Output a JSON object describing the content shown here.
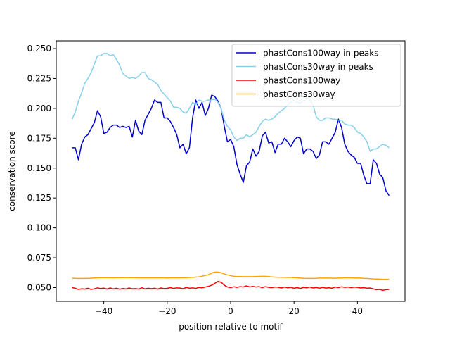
{
  "chart_data": {
    "type": "line",
    "title": "",
    "xlabel": "position relative to motif",
    "ylabel": "conservation score",
    "xlim": [
      -55,
      55
    ],
    "ylim": [
      0.0385,
      0.2565
    ],
    "xticks": [
      -40,
      -20,
      0,
      20,
      40
    ],
    "xtick_labels": [
      "−40",
      "−20",
      "0",
      "20",
      "40"
    ],
    "yticks": [
      0.05,
      0.075,
      0.1,
      0.125,
      0.15,
      0.175,
      0.2,
      0.225,
      0.25
    ],
    "ytick_labels": [
      "0.050",
      "0.075",
      "0.100",
      "0.125",
      "0.150",
      "0.175",
      "0.200",
      "0.225",
      "0.250"
    ],
    "legend_position": "top-right",
    "series": [
      {
        "name": "phastCons100way in peaks",
        "color": "#0000cd",
        "x": [
          -50,
          -49,
          -48,
          -47,
          -46,
          -45,
          -44,
          -43,
          -42,
          -41,
          -40,
          -39,
          -38,
          -37,
          -36,
          -35,
          -34,
          -33,
          -32,
          -31,
          -30,
          -29,
          -28,
          -27,
          -26,
          -25,
          -24,
          -23,
          -22,
          -21,
          -20,
          -19,
          -18,
          -17,
          -16,
          -15,
          -14,
          -13,
          -12,
          -11,
          -10,
          -9,
          -8,
          -7,
          -6,
          -5,
          -4,
          -3,
          -2,
          -1,
          0,
          1,
          2,
          3,
          4,
          5,
          6,
          7,
          8,
          9,
          10,
          11,
          12,
          13,
          14,
          15,
          16,
          17,
          18,
          19,
          20,
          21,
          22,
          23,
          24,
          25,
          26,
          27,
          28,
          29,
          30,
          31,
          32,
          33,
          34,
          35,
          36,
          37,
          38,
          39,
          40,
          41,
          42,
          43,
          44,
          45,
          46,
          47,
          48,
          49,
          50
        ],
        "y": [
          0.167,
          0.167,
          0.157,
          0.17,
          0.176,
          0.178,
          0.183,
          0.188,
          0.198,
          0.193,
          0.179,
          0.18,
          0.184,
          0.186,
          0.186,
          0.184,
          0.185,
          0.184,
          0.185,
          0.176,
          0.19,
          0.181,
          0.178,
          0.19,
          0.195,
          0.2,
          0.207,
          0.205,
          0.205,
          0.192,
          0.192,
          0.189,
          0.184,
          0.178,
          0.167,
          0.17,
          0.162,
          0.167,
          0.192,
          0.207,
          0.2,
          0.205,
          0.194,
          0.2,
          0.211,
          0.21,
          0.206,
          0.2,
          0.185,
          0.172,
          0.174,
          0.168,
          0.153,
          0.145,
          0.138,
          0.152,
          0.155,
          0.166,
          0.16,
          0.164,
          0.177,
          0.18,
          0.171,
          0.172,
          0.163,
          0.17,
          0.17,
          0.175,
          0.172,
          0.168,
          0.173,
          0.176,
          0.175,
          0.162,
          0.166,
          0.166,
          0.164,
          0.158,
          0.161,
          0.172,
          0.172,
          0.17,
          0.175,
          0.18,
          0.191,
          0.184,
          0.17,
          0.164,
          0.161,
          0.159,
          0.154,
          0.154,
          0.144,
          0.137,
          0.137,
          0.157,
          0.154,
          0.145,
          0.142,
          0.131,
          0.127
        ]
      },
      {
        "name": "phastCons30way in peaks",
        "color": "#87ceeb",
        "x": [
          -50,
          -49,
          -48,
          -47,
          -46,
          -45,
          -44,
          -43,
          -42,
          -41,
          -40,
          -39,
          -38,
          -37,
          -36,
          -35,
          -34,
          -33,
          -32,
          -31,
          -30,
          -29,
          -28,
          -27,
          -26,
          -25,
          -24,
          -23,
          -22,
          -21,
          -20,
          -19,
          -18,
          -17,
          -16,
          -15,
          -14,
          -13,
          -12,
          -11,
          -10,
          -9,
          -8,
          -7,
          -6,
          -5,
          -4,
          -3,
          -2,
          -1,
          0,
          1,
          2,
          3,
          4,
          5,
          6,
          7,
          8,
          9,
          10,
          11,
          12,
          13,
          14,
          15,
          16,
          17,
          18,
          19,
          20,
          21,
          22,
          23,
          24,
          25,
          26,
          27,
          28,
          29,
          30,
          31,
          32,
          33,
          34,
          35,
          36,
          37,
          38,
          39,
          40,
          41,
          42,
          43,
          44,
          45,
          46,
          47,
          48,
          49,
          50
        ],
        "y": [
          0.191,
          0.197,
          0.206,
          0.213,
          0.221,
          0.225,
          0.23,
          0.237,
          0.244,
          0.244,
          0.246,
          0.246,
          0.244,
          0.245,
          0.241,
          0.236,
          0.229,
          0.227,
          0.225,
          0.226,
          0.225,
          0.227,
          0.23,
          0.23,
          0.225,
          0.224,
          0.222,
          0.22,
          0.215,
          0.212,
          0.209,
          0.206,
          0.201,
          0.201,
          0.2,
          0.197,
          0.196,
          0.2,
          0.205,
          0.203,
          0.207,
          0.206,
          0.206,
          0.207,
          0.207,
          0.208,
          0.205,
          0.2,
          0.19,
          0.185,
          0.182,
          0.176,
          0.173,
          0.175,
          0.175,
          0.178,
          0.176,
          0.178,
          0.18,
          0.185,
          0.189,
          0.191,
          0.19,
          0.191,
          0.193,
          0.196,
          0.198,
          0.2,
          0.203,
          0.205,
          0.207,
          0.205,
          0.204,
          0.208,
          0.209,
          0.207,
          0.203,
          0.193,
          0.19,
          0.19,
          0.192,
          0.192,
          0.191,
          0.191,
          0.19,
          0.19,
          0.187,
          0.186,
          0.186,
          0.184,
          0.18,
          0.179,
          0.176,
          0.172,
          0.164,
          0.166,
          0.166,
          0.168,
          0.17,
          0.169,
          0.167
        ]
      },
      {
        "name": "phastCons100way",
        "color": "#ff0000",
        "x": [
          -50,
          -49,
          -48,
          -47,
          -46,
          -45,
          -44,
          -43,
          -42,
          -41,
          -40,
          -39,
          -38,
          -37,
          -36,
          -35,
          -34,
          -33,
          -32,
          -31,
          -30,
          -29,
          -28,
          -27,
          -26,
          -25,
          -24,
          -23,
          -22,
          -21,
          -20,
          -19,
          -18,
          -17,
          -16,
          -15,
          -14,
          -13,
          -12,
          -11,
          -10,
          -9,
          -8,
          -7,
          -6,
          -5,
          -4,
          -3,
          -2,
          -1,
          0,
          1,
          2,
          3,
          4,
          5,
          6,
          7,
          8,
          9,
          10,
          11,
          12,
          13,
          14,
          15,
          16,
          17,
          18,
          19,
          20,
          21,
          22,
          23,
          24,
          25,
          26,
          27,
          28,
          29,
          30,
          31,
          32,
          33,
          34,
          35,
          36,
          37,
          38,
          39,
          40,
          41,
          42,
          43,
          44,
          45,
          46,
          47,
          48,
          49,
          50
        ],
        "y": [
          0.05,
          0.0495,
          0.0485,
          0.049,
          0.0488,
          0.0495,
          0.0485,
          0.049,
          0.0498,
          0.0492,
          0.0496,
          0.0488,
          0.0497,
          0.049,
          0.0495,
          0.0487,
          0.0493,
          0.0489,
          0.0497,
          0.049,
          0.0492,
          0.0488,
          0.0499,
          0.049,
          0.0495,
          0.0491,
          0.0495,
          0.0488,
          0.0497,
          0.0492,
          0.0494,
          0.05,
          0.0493,
          0.0498,
          0.0496,
          0.0491,
          0.0502,
          0.0495,
          0.0498,
          0.0493,
          0.0502,
          0.0498,
          0.0505,
          0.051,
          0.052,
          0.0535,
          0.0552,
          0.0545,
          0.052,
          0.0505,
          0.05,
          0.0507,
          0.0502,
          0.0508,
          0.0505,
          0.0515,
          0.0505,
          0.051,
          0.0505,
          0.0508,
          0.05,
          0.0508,
          0.0502,
          0.05,
          0.0505,
          0.0503,
          0.0497,
          0.0505,
          0.0498,
          0.0503,
          0.0495,
          0.05,
          0.0493,
          0.0502,
          0.0498,
          0.0505,
          0.0497,
          0.0501,
          0.0495,
          0.0502,
          0.0496,
          0.0499,
          0.0495,
          0.0505,
          0.05,
          0.0507,
          0.0502,
          0.0505,
          0.05,
          0.0504,
          0.0502,
          0.0497,
          0.05,
          0.0495,
          0.0497,
          0.049,
          0.0482,
          0.0485,
          0.0478,
          0.0483,
          0.0485
        ]
      },
      {
        "name": "phastCons30way",
        "color": "#ffa500",
        "x": [
          -50,
          -49,
          -48,
          -47,
          -46,
          -45,
          -44,
          -43,
          -42,
          -41,
          -40,
          -39,
          -38,
          -37,
          -36,
          -35,
          -34,
          -33,
          -32,
          -31,
          -30,
          -29,
          -28,
          -27,
          -26,
          -25,
          -24,
          -23,
          -22,
          -21,
          -20,
          -19,
          -18,
          -17,
          -16,
          -15,
          -14,
          -13,
          -12,
          -11,
          -10,
          -9,
          -8,
          -7,
          -6,
          -5,
          -4,
          -3,
          -2,
          -1,
          0,
          1,
          2,
          3,
          4,
          5,
          6,
          7,
          8,
          9,
          10,
          11,
          12,
          13,
          14,
          15,
          16,
          17,
          18,
          19,
          20,
          21,
          22,
          23,
          24,
          25,
          26,
          27,
          28,
          29,
          30,
          31,
          32,
          33,
          34,
          35,
          36,
          37,
          38,
          39,
          40,
          41,
          42,
          43,
          44,
          45,
          46,
          47,
          48,
          49,
          50
        ],
        "y": [
          0.058,
          0.0578,
          0.0577,
          0.0577,
          0.0577,
          0.0578,
          0.0579,
          0.0581,
          0.0582,
          0.0583,
          0.0583,
          0.0583,
          0.0583,
          0.0582,
          0.0583,
          0.0583,
          0.0584,
          0.0584,
          0.0584,
          0.0583,
          0.0583,
          0.0582,
          0.0582,
          0.0582,
          0.0582,
          0.0582,
          0.0582,
          0.0582,
          0.0582,
          0.0582,
          0.0581,
          0.0582,
          0.0582,
          0.0582,
          0.0582,
          0.0582,
          0.0583,
          0.0585,
          0.0586,
          0.0588,
          0.059,
          0.0595,
          0.0602,
          0.0608,
          0.0622,
          0.063,
          0.063,
          0.0625,
          0.0615,
          0.0607,
          0.06,
          0.0595,
          0.0593,
          0.0593,
          0.0592,
          0.0592,
          0.0592,
          0.0592,
          0.0593,
          0.0594,
          0.0595,
          0.0595,
          0.0593,
          0.059,
          0.0588,
          0.0587,
          0.0587,
          0.0586,
          0.0585,
          0.0585,
          0.0584,
          0.0582,
          0.058,
          0.0578,
          0.0577,
          0.0577,
          0.0577,
          0.0578,
          0.058,
          0.058,
          0.058,
          0.058,
          0.0579,
          0.0579,
          0.058,
          0.0581,
          0.0582,
          0.0582,
          0.0582,
          0.0581,
          0.058,
          0.058,
          0.0578,
          0.0577,
          0.0575,
          0.0573,
          0.0572,
          0.0571,
          0.057,
          0.057,
          0.057
        ]
      }
    ]
  }
}
